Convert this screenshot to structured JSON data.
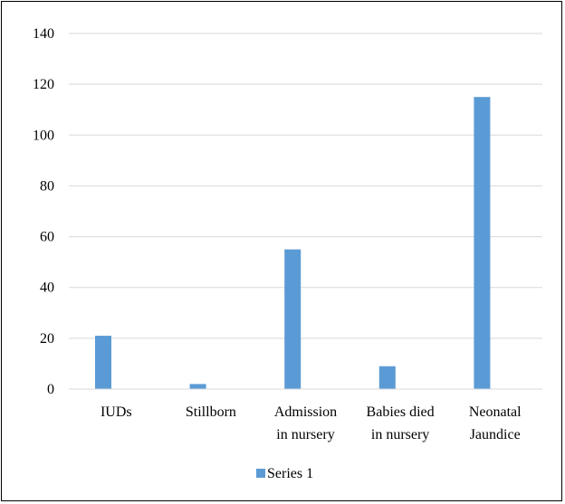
{
  "chart_data": {
    "type": "bar",
    "categories": [
      [
        "IUDs"
      ],
      [
        "Stillborn"
      ],
      [
        "Admission",
        "in nursery"
      ],
      [
        "Babies died",
        "in nursery"
      ],
      [
        "Neonatal",
        "Jaundice"
      ]
    ],
    "series": [
      {
        "name": "Series 1",
        "values": [
          21,
          2,
          55,
          9,
          115
        ],
        "color": "#5b9bd5"
      }
    ],
    "yticks": [
      "0",
      "20",
      "40",
      "60",
      "80",
      "100",
      "120",
      "140"
    ],
    "ylim": [
      0,
      140
    ],
    "grid": true,
    "gridColor": "#d9d9d9",
    "legend": "bottom"
  }
}
